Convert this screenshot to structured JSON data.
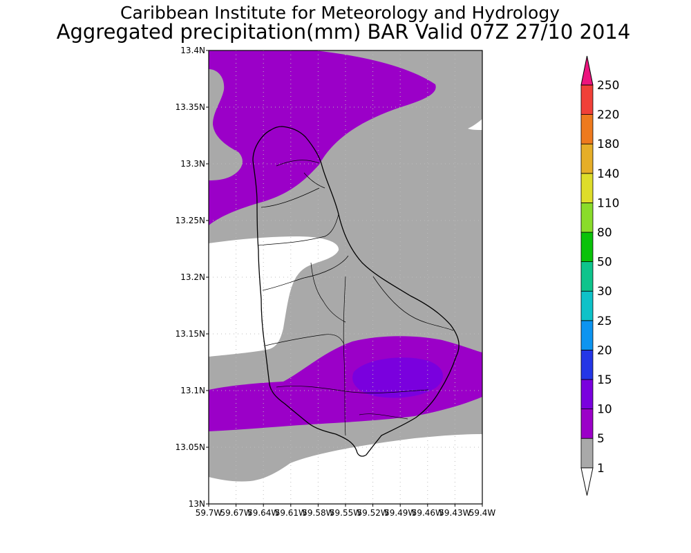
{
  "title": {
    "line1": "Caribbean Institute for Meteorology and Hydrology",
    "line2": "Aggregated precipitation(mm) BAR Valid 07Z 27/10 2014"
  },
  "map": {
    "lon_range": [
      -59.7,
      -59.4
    ],
    "lat_range": [
      13.0,
      13.4
    ],
    "grid": true,
    "x_ticks": [
      {
        "value": -59.7,
        "label": "59.7W"
      },
      {
        "value": -59.67,
        "label": "59.67W"
      },
      {
        "value": -59.64,
        "label": "59.64W"
      },
      {
        "value": -59.61,
        "label": "59.61W"
      },
      {
        "value": -59.58,
        "label": "59.58W"
      },
      {
        "value": -59.55,
        "label": "59.55W"
      },
      {
        "value": -59.52,
        "label": "59.52W"
      },
      {
        "value": -59.49,
        "label": "59.49W"
      },
      {
        "value": -59.46,
        "label": "59.46W"
      },
      {
        "value": -59.43,
        "label": "59.43W"
      },
      {
        "value": -59.4,
        "label": "59.4W"
      }
    ],
    "y_ticks": [
      {
        "value": 13.0,
        "label": "13N"
      },
      {
        "value": 13.05,
        "label": "13.05N"
      },
      {
        "value": 13.1,
        "label": "13.1N"
      },
      {
        "value": 13.15,
        "label": "13.15N"
      },
      {
        "value": 13.2,
        "label": "13.2N"
      },
      {
        "value": 13.25,
        "label": "13.25N"
      },
      {
        "value": 13.3,
        "label": "13.3N"
      },
      {
        "value": 13.35,
        "label": "13.35N"
      },
      {
        "value": 13.4,
        "label": "13.4N"
      }
    ],
    "shading_colors": {
      "below_1": "#ffffff",
      "1_to_5": "#a9a9a9",
      "5_to_10": "#9b00c8",
      "10_to_15": "#7a00de"
    }
  },
  "colorbar": {
    "levels": [
      "1",
      "5",
      "10",
      "15",
      "20",
      "25",
      "30",
      "50",
      "80",
      "110",
      "140",
      "180",
      "220",
      "250"
    ],
    "colors": [
      "#ffffff",
      "#a9a9a9",
      "#9b00c8",
      "#7a00de",
      "#2436e6",
      "#0d94f0",
      "#0ec2c8",
      "#0ec48c",
      "#0ac20a",
      "#8adc2a",
      "#dedd2a",
      "#e6ae28",
      "#ee7a1e",
      "#f04038",
      "#ec147e"
    ]
  }
}
